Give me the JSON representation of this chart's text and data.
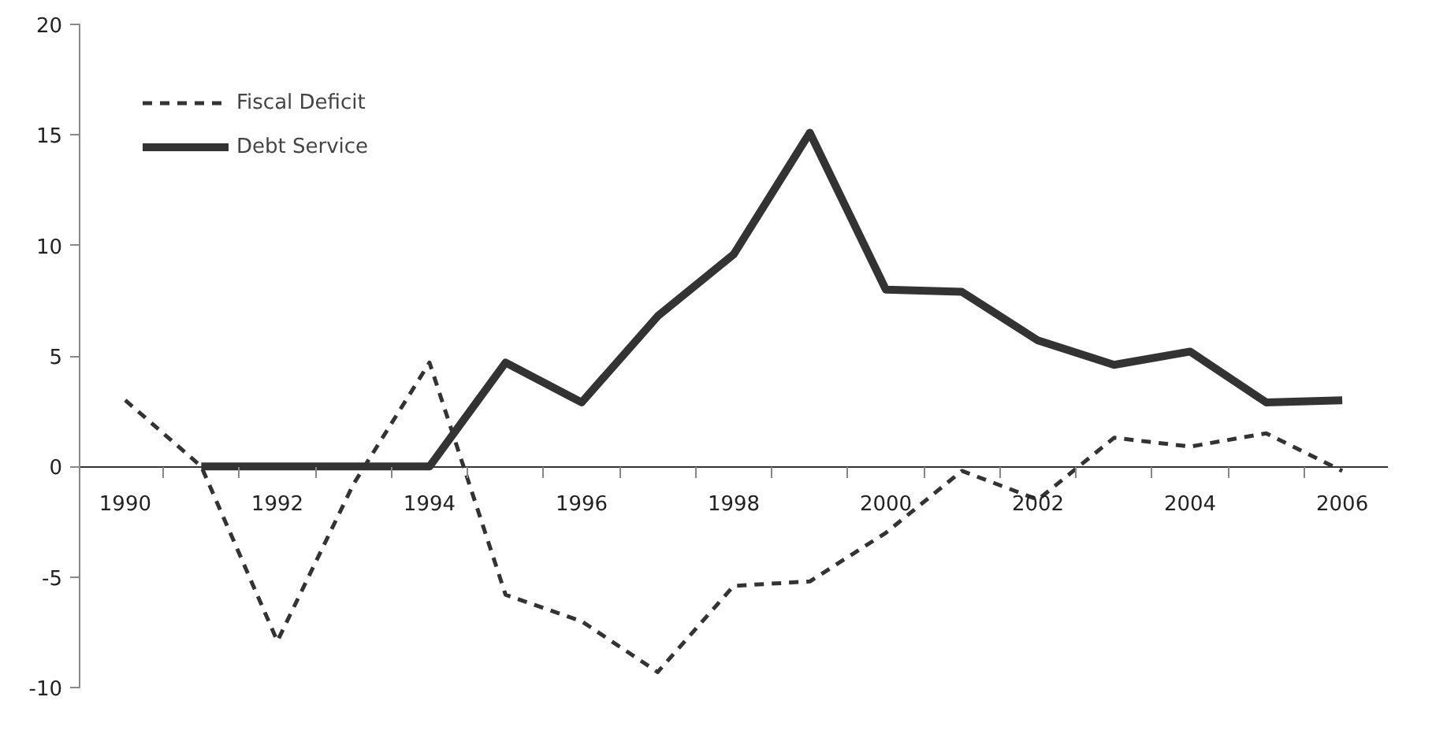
{
  "chart_data": {
    "type": "line",
    "categories": [
      "1990",
      null,
      "1992",
      null,
      "1994",
      null,
      "1996",
      null,
      "1998",
      null,
      "2000",
      null,
      "2002",
      null,
      "2004",
      null,
      "2006"
    ],
    "ylim": [
      -10,
      20
    ],
    "yticks": [
      -10,
      -5,
      0,
      5,
      10,
      15,
      20
    ],
    "grid": false,
    "legend": "top left",
    "series": [
      {
        "name": "Fiscal Deficit",
        "color": "#333333",
        "line_style": "dashed",
        "values": [
          3.0,
          0.0,
          -7.9,
          -0.8,
          4.7,
          -5.8,
          -7.0,
          -9.3,
          -5.4,
          -5.2,
          -3.0,
          -0.2,
          -1.5,
          1.3,
          0.9,
          1.5,
          -0.2
        ]
      },
      {
        "name": "Debt Service",
        "color": "#333333",
        "line_style": "solid",
        "values": [
          null,
          0,
          0,
          0,
          0,
          4.7,
          2.9,
          6.8,
          9.6,
          15.1,
          8.0,
          7.9,
          5.7,
          4.6,
          5.2,
          2.9,
          3.0
        ]
      }
    ]
  }
}
